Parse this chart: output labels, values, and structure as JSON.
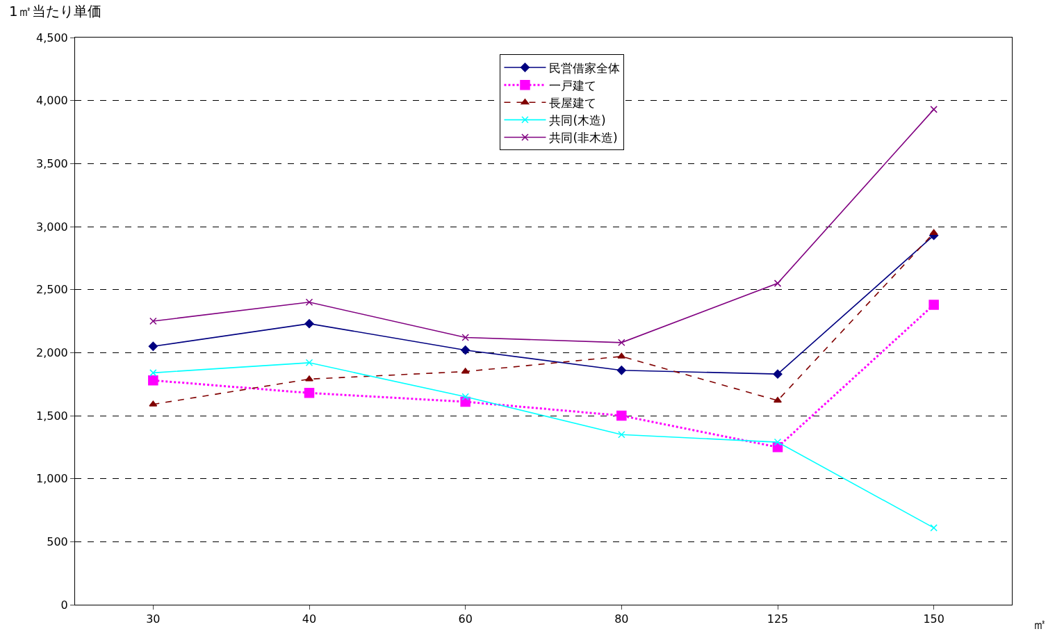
{
  "chart_data": {
    "type": "line",
    "ylabel": "1㎡当たり単価",
    "xlabel": "㎡",
    "categories": [
      "30",
      "40",
      "60",
      "80",
      "125",
      "150"
    ],
    "ylim": [
      0,
      4500
    ],
    "yticks": [
      0,
      {
        "value": 500,
        "label": "500"
      },
      {
        "value": 1000,
        "label": "1,000"
      },
      {
        "value": 1500,
        "label": "1,500"
      },
      {
        "value": 2000,
        "label": "2,000"
      },
      {
        "value": 2500,
        "label": "2,500"
      },
      {
        "value": 3000,
        "label": "3,000"
      },
      {
        "value": 3500,
        "label": "3,500"
      },
      {
        "value": 4000,
        "label": "4,000"
      },
      {
        "value": 4500,
        "label": "4,500"
      }
    ],
    "grid": "y",
    "legend": "top",
    "series": [
      {
        "name": "民営借家全体",
        "color": "#000080",
        "marker": "diamond",
        "line_style": "solid",
        "values": [
          2050,
          2230,
          2020,
          1860,
          1830,
          2930
        ]
      },
      {
        "name": "一戸建て",
        "color": "#ff00ff",
        "marker": "square",
        "line_style": "dotted",
        "values": [
          1780,
          1680,
          1610,
          1500,
          1250,
          2380
        ]
      },
      {
        "name": "長屋建て",
        "color": "#800000",
        "marker": "triangle",
        "line_style": "dashed",
        "values": [
          1590,
          1790,
          1850,
          1970,
          1620,
          2950
        ]
      },
      {
        "name": "共同(木造)",
        "color": "#00ffff",
        "marker": "cross",
        "line_style": "solid",
        "values": [
          1840,
          1920,
          1650,
          1350,
          1290,
          610
        ]
      },
      {
        "name": "共同(非木造)",
        "color": "#800080",
        "marker": "cross",
        "line_style": "solid",
        "values": [
          2250,
          2400,
          2120,
          2080,
          2550,
          3930
        ]
      }
    ]
  }
}
